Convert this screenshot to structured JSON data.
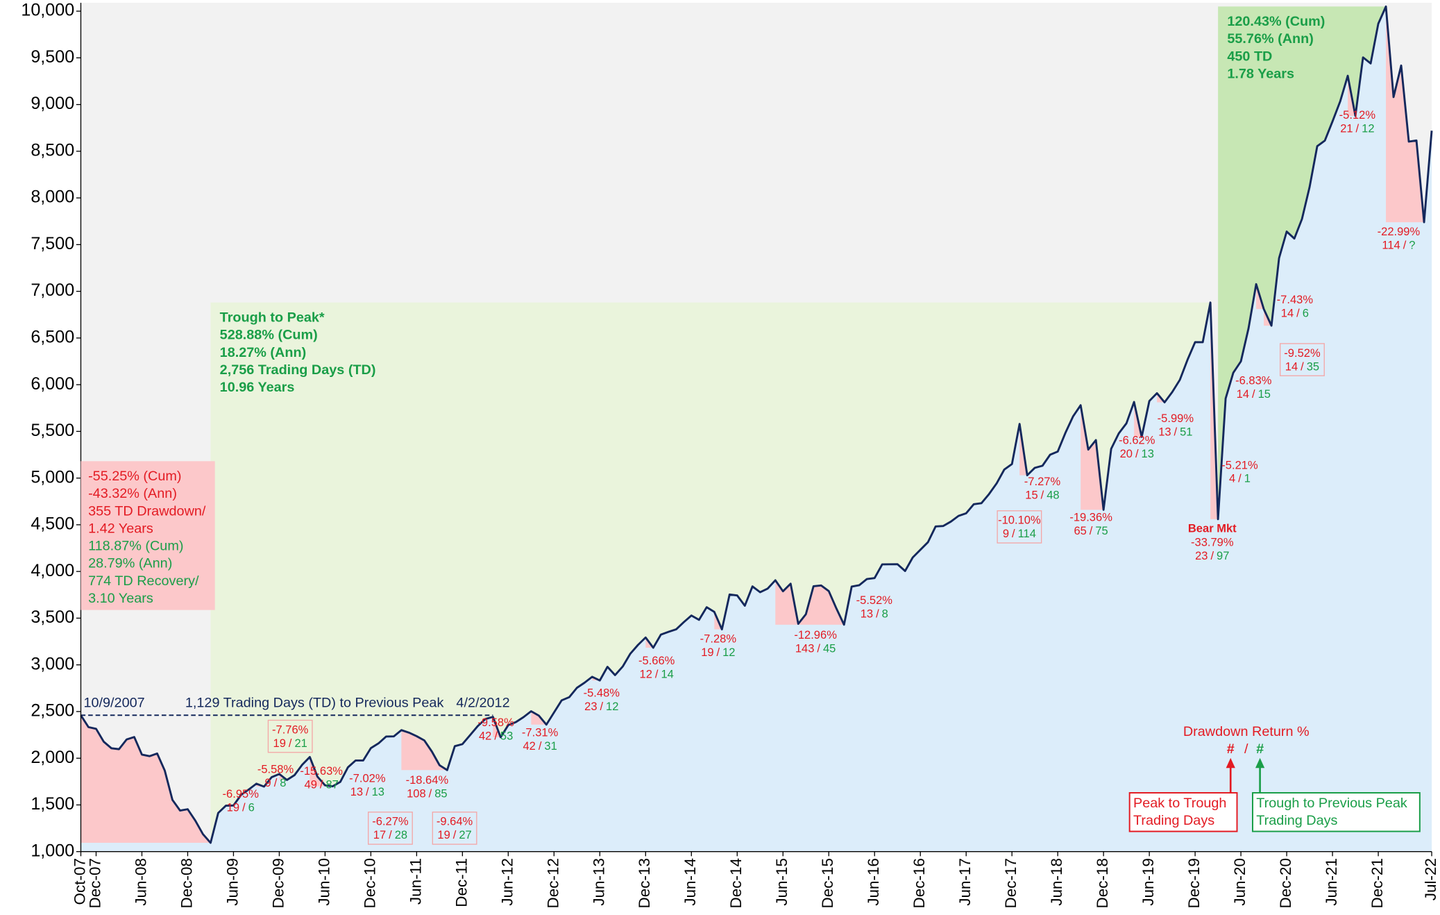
{
  "chart_data": {
    "type": "line",
    "xlim": [
      "2007-10",
      "2022-07"
    ],
    "ylim": [
      1000,
      10090
    ],
    "grid": false,
    "xticks": [
      {
        "value": "2007-10",
        "label": "Oct-07"
      },
      {
        "value": "2007-12",
        "label": "Dec-07"
      },
      {
        "value": "2008-06",
        "label": "Jun-08"
      },
      {
        "value": "2008-12",
        "label": "Dec-08"
      },
      {
        "value": "2009-06",
        "label": "Jun-09"
      },
      {
        "value": "2009-12",
        "label": "Dec-09"
      },
      {
        "value": "2010-06",
        "label": "Jun-10"
      },
      {
        "value": "2010-12",
        "label": "Dec-10"
      },
      {
        "value": "2011-06",
        "label": "Jun-11"
      },
      {
        "value": "2011-12",
        "label": "Dec-11"
      },
      {
        "value": "2012-06",
        "label": "Jun-12"
      },
      {
        "value": "2012-12",
        "label": "Dec-12"
      },
      {
        "value": "2013-06",
        "label": "Jun-13"
      },
      {
        "value": "2013-12",
        "label": "Dec-13"
      },
      {
        "value": "2014-06",
        "label": "Jun-14"
      },
      {
        "value": "2014-12",
        "label": "Dec-14"
      },
      {
        "value": "2015-06",
        "label": "Jun-15"
      },
      {
        "value": "2015-12",
        "label": "Dec-15"
      },
      {
        "value": "2016-06",
        "label": "Jun-16"
      },
      {
        "value": "2016-12",
        "label": "Dec-16"
      },
      {
        "value": "2017-06",
        "label": "Jun-17"
      },
      {
        "value": "2017-12",
        "label": "Dec-17"
      },
      {
        "value": "2018-06",
        "label": "Jun-18"
      },
      {
        "value": "2018-12",
        "label": "Dec-18"
      },
      {
        "value": "2019-06",
        "label": "Jun-19"
      },
      {
        "value": "2019-12",
        "label": "Dec-19"
      },
      {
        "value": "2020-06",
        "label": "Jun-20"
      },
      {
        "value": "2020-12",
        "label": "Dec-20"
      },
      {
        "value": "2021-06",
        "label": "Jun-21"
      },
      {
        "value": "2021-12",
        "label": "Dec-21"
      },
      {
        "value": "2022-07",
        "label": "Jul-22"
      }
    ],
    "yticks": [
      {
        "value": 1000,
        "label": "1,000"
      },
      {
        "value": 1500,
        "label": "1,500"
      },
      {
        "value": 2000,
        "label": "2,000"
      },
      {
        "value": 2500,
        "label": "2,500"
      },
      {
        "value": 3000,
        "label": "3,000"
      },
      {
        "value": 3500,
        "label": "3,500"
      },
      {
        "value": 4000,
        "label": "4,000"
      },
      {
        "value": 4500,
        "label": "4,500"
      },
      {
        "value": 5000,
        "label": "5,000"
      },
      {
        "value": 5500,
        "label": "5,500"
      },
      {
        "value": 6000,
        "label": "6,000"
      },
      {
        "value": 6500,
        "label": "6,500"
      },
      {
        "value": 7000,
        "label": "7,000"
      },
      {
        "value": 7500,
        "label": "7,500"
      },
      {
        "value": 8000,
        "label": "8,000"
      },
      {
        "value": 8500,
        "label": "8,500"
      },
      {
        "value": 9000,
        "label": "9,000"
      },
      {
        "value": 9500,
        "label": "9,500"
      },
      {
        "value": 10000,
        "label": "10,000"
      }
    ],
    "x": [
      "2007-10",
      "2007-11",
      "2007-12",
      "2008-01",
      "2008-02",
      "2008-03",
      "2008-04",
      "2008-05",
      "2008-06",
      "2008-07",
      "2008-08",
      "2008-09",
      "2008-10",
      "2008-11",
      "2008-12",
      "2009-01",
      "2009-02",
      "2009-03",
      "2009-04",
      "2009-05",
      "2009-06",
      "2009-07",
      "2009-08",
      "2009-09",
      "2009-10",
      "2009-11",
      "2009-12",
      "2010-01",
      "2010-02",
      "2010-03",
      "2010-04",
      "2010-05",
      "2010-06",
      "2010-07",
      "2010-08",
      "2010-09",
      "2010-10",
      "2010-11",
      "2010-12",
      "2011-01",
      "2011-02",
      "2011-03",
      "2011-04",
      "2011-05",
      "2011-06",
      "2011-07",
      "2011-08",
      "2011-09",
      "2011-10",
      "2011-11",
      "2011-12",
      "2012-01",
      "2012-02",
      "2012-03",
      "2012-04",
      "2012-05",
      "2012-06",
      "2012-07",
      "2012-08",
      "2012-09",
      "2012-10",
      "2012-11",
      "2012-12",
      "2013-01",
      "2013-02",
      "2013-03",
      "2013-04",
      "2013-05",
      "2013-06",
      "2013-07",
      "2013-08",
      "2013-09",
      "2013-10",
      "2013-11",
      "2013-12",
      "2014-01",
      "2014-02",
      "2014-03",
      "2014-04",
      "2014-05",
      "2014-06",
      "2014-07",
      "2014-08",
      "2014-09",
      "2014-10",
      "2014-11",
      "2014-12",
      "2015-01",
      "2015-02",
      "2015-03",
      "2015-04",
      "2015-05",
      "2015-06",
      "2015-07",
      "2015-08",
      "2015-09",
      "2015-10",
      "2015-11",
      "2015-12",
      "2016-01",
      "2016-02",
      "2016-03",
      "2016-04",
      "2016-05",
      "2016-06",
      "2016-07",
      "2016-08",
      "2016-09",
      "2016-10",
      "2016-11",
      "2016-12",
      "2017-01",
      "2017-02",
      "2017-03",
      "2017-04",
      "2017-05",
      "2017-06",
      "2017-07",
      "2017-08",
      "2017-09",
      "2017-10",
      "2017-11",
      "2017-12",
      "2018-01",
      "2018-02",
      "2018-03",
      "2018-04",
      "2018-05",
      "2018-06",
      "2018-07",
      "2018-08",
      "2018-09",
      "2018-10",
      "2018-11",
      "2018-12",
      "2019-01",
      "2019-02",
      "2019-03",
      "2019-04",
      "2019-05",
      "2019-06",
      "2019-07",
      "2019-08",
      "2019-09",
      "2019-10",
      "2019-11",
      "2019-12",
      "2020-01",
      "2020-02",
      "2020-03",
      "2020-04",
      "2020-05",
      "2020-06",
      "2020-07",
      "2020-08",
      "2020-09",
      "2020-10",
      "2020-11",
      "2020-12",
      "2021-01",
      "2021-02",
      "2021-03",
      "2021-04",
      "2021-05",
      "2021-06",
      "2021-07",
      "2021-08",
      "2021-09",
      "2021-10",
      "2021-11",
      "2021-12",
      "2022-01",
      "2022-02",
      "2022-03",
      "2022-04",
      "2022-05",
      "2022-06",
      "2022-07"
    ],
    "series": [
      {
        "color": "#14285c",
        "values": [
          2460,
          2333,
          2315,
          2177,
          2107,
          2097,
          2201,
          2227,
          2039,
          2022,
          2051,
          1867,
          1554,
          1440,
          1454,
          1332,
          1187,
          1094,
          1414,
          1492,
          1494,
          1608,
          1665,
          1727,
          1696,
          1797,
          1831,
          1767,
          1819,
          1930,
          2013,
          1803,
          1710,
          1699,
          1747,
          1903,
          1976,
          1976,
          2108,
          2159,
          2232,
          2234,
          2301,
          2274,
          2236,
          2191,
          2071,
          1925,
          1873,
          2129,
          2151,
          2247,
          2344,
          2420,
          2443,
          2225,
          2354,
          2387,
          2440,
          2503,
          2457,
          2360,
          2490,
          2620,
          2654,
          2754,
          2809,
          2872,
          2833,
          2979,
          2890,
          2982,
          3120,
          3213,
          3293,
          3183,
          3324,
          3353,
          3380,
          3457,
          3528,
          3482,
          3617,
          3567,
          3380,
          3753,
          3743,
          3633,
          3840,
          3778,
          3817,
          3906,
          3788,
          3869,
          3439,
          3542,
          3842,
          3850,
          3790,
          3603,
          3430,
          3838,
          3853,
          3919,
          3929,
          4076,
          4077,
          4078,
          4005,
          4150,
          4232,
          4314,
          4482,
          4487,
          4534,
          4595,
          4623,
          4720,
          4731,
          4829,
          4944,
          5092,
          5150,
          5580,
          5030,
          5110,
          5132,
          5250,
          5284,
          5483,
          5659,
          5780,
          5305,
          5407,
          4660,
          5313,
          5479,
          5586,
          5815,
          5441,
          5825,
          5909,
          5811,
          5921,
          6052,
          6266,
          6456,
          6455,
          6880,
          4560,
          5853,
          6128,
          6250,
          6604,
          7077,
          6810,
          6632,
          7356,
          7640,
          7565,
          7774,
          8117,
          8554,
          8614,
          8819,
          9032,
          9308,
          8879,
          9505,
          9440,
          9866,
          10050,
          9080,
          9418,
          8603,
          8615,
          7740,
          8720
        ]
      }
    ],
    "area_fill": "#dcedfa",
    "drawdown_fill": "#fcc8ca",
    "separator": "/",
    "drawdowns": [
      {
        "peak": "2009-06",
        "trough": "2009-06",
        "return": "-6.95%",
        "p2t": "19",
        "t2p": "6"
      },
      {
        "peak": "2009-09",
        "trough": "2009-10",
        "return": "-5.58%",
        "p2t": "9",
        "t2p": "8"
      },
      {
        "peak": "2009-12",
        "trough": "2010-01",
        "return": "-7.76%",
        "p2t": "19",
        "t2p": "21",
        "boxed": true
      },
      {
        "peak": "2010-04",
        "trough": "2010-07",
        "return": "-15.63%",
        "p2t": "49",
        "t2p": "87"
      },
      {
        "peak": "2010-11",
        "trough": "2010-11",
        "return": "-7.02%",
        "p2t": "13",
        "t2p": "13"
      },
      {
        "peak": "2011-02",
        "trough": "2011-02",
        "return": "-6.27%",
        "p2t": "17",
        "t2p": "28",
        "boxed": true
      },
      {
        "peak": "2011-04",
        "trough": "2011-10",
        "return": "-18.64%",
        "p2t": "108",
        "t2p": "85"
      },
      {
        "peak": "2011-11",
        "trough": "2011-11",
        "return": "-9.64%",
        "p2t": "19",
        "t2p": "27",
        "boxed": true
      },
      {
        "peak": "2012-04",
        "trough": "2012-05",
        "return": "-9.58%",
        "p2t": "42",
        "t2p": "53"
      },
      {
        "peak": "2012-09",
        "trough": "2012-11",
        "return": "-7.31%",
        "p2t": "42",
        "t2p": "31"
      },
      {
        "peak": "2013-05",
        "trough": "2013-06",
        "return": "-5.48%",
        "p2t": "23",
        "t2p": "12"
      },
      {
        "peak": "2013-12",
        "trough": "2014-01",
        "return": "-5.66%",
        "p2t": "12",
        "t2p": "14"
      },
      {
        "peak": "2014-09",
        "trough": "2014-10",
        "return": "-7.28%",
        "p2t": "19",
        "t2p": "12"
      },
      {
        "peak": "2015-05",
        "trough": "2016-02",
        "return": "-12.96%",
        "p2t": "143",
        "t2p": "45"
      },
      {
        "peak": "2016-06",
        "trough": "2016-06",
        "return": "-5.52%",
        "p2t": "13",
        "t2p": "8"
      },
      {
        "peak": "2018-01",
        "trough": "2018-02",
        "return": "-10.10%",
        "p2t": "9",
        "t2p": "114",
        "boxed": true
      },
      {
        "peak": "2018-03",
        "trough": "2018-03",
        "return": "-7.27%",
        "p2t": "15",
        "t2p": "48"
      },
      {
        "peak": "2018-09",
        "trough": "2018-12",
        "return": "-19.36%",
        "p2t": "65",
        "t2p": "75"
      },
      {
        "peak": "2019-04",
        "trough": "2019-05",
        "return": "-6.62%",
        "p2t": "20",
        "t2p": "13"
      },
      {
        "peak": "2019-07",
        "trough": "2019-08",
        "return": "-5.99%",
        "p2t": "13",
        "t2p": "51"
      },
      {
        "peak": "2020-02",
        "trough": "2020-03",
        "return": "-33.79%",
        "p2t": "23",
        "t2p": "97",
        "tag": "Bear Mkt"
      },
      {
        "peak": "2020-06",
        "trough": "2020-06",
        "return": "-5.21%",
        "p2t": "4",
        "t2p": "1"
      },
      {
        "peak": "2020-06",
        "trough": "2020-06",
        "return": "-6.83%",
        "p2t": "14",
        "t2p": "15"
      },
      {
        "peak": "2020-08",
        "trough": "2020-09",
        "return": "-9.52%",
        "p2t": "14",
        "t2p": "35",
        "boxed": true
      },
      {
        "peak": "2020-09",
        "trough": "2020-10",
        "return": "-7.43%",
        "p2t": "14",
        "t2p": "6"
      },
      {
        "peak": "2021-08",
        "trough": "2021-09",
        "return": "-5.12%",
        "p2t": "21",
        "t2p": "12"
      },
      {
        "peak": "2022-01",
        "trough": "2022-06",
        "return": "-22.99%",
        "p2t": "114",
        "t2p": "?"
      }
    ],
    "first_drawdown_box": {
      "drawdown_stats": [
        "-55.25% (Cum)",
        "-43.32% (Ann)",
        "355 TD Drawdown/",
        "1.42 Years"
      ],
      "recovery_stats": [
        "118.87% (Cum)",
        "28.79% (Ann)",
        "774 TD Recovery/",
        "3.10 Years"
      ]
    },
    "bull_markets": [
      {
        "start": "2009-03",
        "end": "2020-02",
        "color": "#eaf4dc",
        "lines": [
          "Trough to Peak*",
          "528.88% (Cum)",
          "18.27% (Ann)",
          "2,756 Trading Days (TD)",
          "10.96 Years"
        ]
      },
      {
        "start": "2020-03",
        "end": "2022-01",
        "color": "#c7e7b4",
        "lines": [
          "120.43% (Cum)",
          "55.76% (Ann)",
          "450 TD",
          "1.78 Years"
        ]
      }
    ],
    "recovery_span": {
      "end": "2012-04",
      "start_label": "10/9/2007",
      "end_label": "4/2/2012",
      "text": "1,129 Trading Days (TD) to Previous Peak"
    },
    "legend": {
      "title": "Drawdown Return %",
      "marker": "#",
      "separator": "/",
      "peak_to_trough": [
        "Peak to Trough",
        "Trading Days"
      ],
      "trough_to_peak": [
        "Trough to Previous Peak",
        "Trading Days"
      ]
    }
  }
}
